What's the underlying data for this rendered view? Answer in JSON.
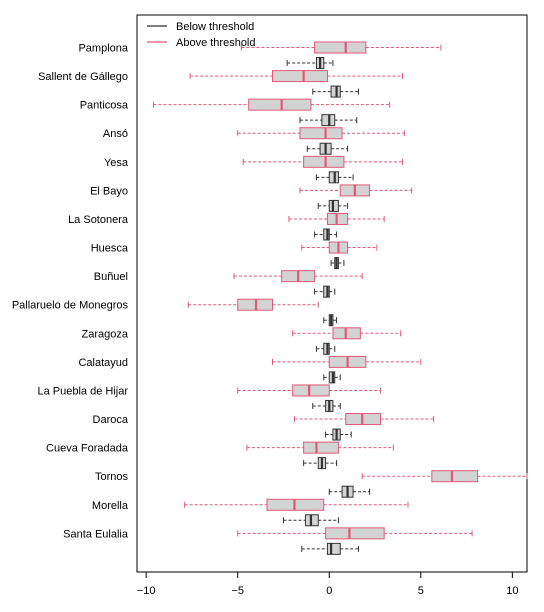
{
  "chart_data": {
    "type": "boxplot",
    "orientation": "horizontal",
    "xlim": [
      -10.5,
      10.8
    ],
    "x_ticks": [
      -10,
      -5,
      0,
      5,
      10
    ],
    "legend": {
      "position": "top-left",
      "entries": [
        {
          "label": "Below threshold",
          "color": "#333333"
        },
        {
          "label": "Above threshold",
          "color": "#e05a78"
        }
      ]
    },
    "categories": [
      {
        "name": "Pamplona",
        "above": {
          "min": -4.8,
          "q1": -0.8,
          "median": 0.9,
          "q3": 2.0,
          "max": 6.1
        },
        "below": {
          "min": -2.3,
          "q1": -0.7,
          "median": -0.5,
          "q3": -0.3,
          "max": 0.2
        }
      },
      {
        "name": "Sallent de Gállego",
        "above": {
          "min": -7.6,
          "q1": -3.1,
          "median": -1.4,
          "q3": -0.1,
          "max": 4.0
        },
        "below": {
          "min": -0.9,
          "q1": 0.1,
          "median": 0.4,
          "q3": 0.6,
          "max": 1.6
        }
      },
      {
        "name": "Panticosa",
        "above": {
          "min": -9.6,
          "q1": -4.4,
          "median": -2.6,
          "q3": -1.0,
          "max": 3.3
        },
        "below": {
          "min": -1.6,
          "q1": -0.4,
          "median": 0.0,
          "q3": 0.3,
          "max": 1.5
        }
      },
      {
        "name": "Ansó",
        "above": {
          "min": -5.0,
          "q1": -1.6,
          "median": -0.2,
          "q3": 0.7,
          "max": 4.1
        },
        "below": {
          "min": -1.2,
          "q1": -0.5,
          "median": -0.2,
          "q3": 0.1,
          "max": 1.0
        }
      },
      {
        "name": "Yesa",
        "above": {
          "min": -4.7,
          "q1": -1.4,
          "median": -0.2,
          "q3": 0.8,
          "max": 4.0
        },
        "below": {
          "min": -0.7,
          "q1": 0.0,
          "median": 0.3,
          "q3": 0.5,
          "max": 1.3
        }
      },
      {
        "name": "El Bayo",
        "above": {
          "min": -1.6,
          "q1": 0.6,
          "median": 1.4,
          "q3": 2.2,
          "max": 4.5
        },
        "below": {
          "min": -0.6,
          "q1": 0.0,
          "median": 0.2,
          "q3": 0.5,
          "max": 1.0
        }
      },
      {
        "name": "La Sotonera",
        "above": {
          "min": -2.2,
          "q1": -0.1,
          "median": 0.4,
          "q3": 1.0,
          "max": 3.0
        },
        "below": {
          "min": -0.8,
          "q1": -0.3,
          "median": -0.1,
          "q3": 0.0,
          "max": 0.4
        }
      },
      {
        "name": "Huesca",
        "above": {
          "min": -1.5,
          "q1": 0.0,
          "median": 0.5,
          "q3": 1.0,
          "max": 2.6
        },
        "below": {
          "min": 0.1,
          "q1": 0.3,
          "median": 0.4,
          "q3": 0.5,
          "max": 0.8
        }
      },
      {
        "name": "Buñuel",
        "above": {
          "min": -5.2,
          "q1": -2.6,
          "median": -1.7,
          "q3": -0.8,
          "max": 1.8
        },
        "below": {
          "min": -0.8,
          "q1": -0.3,
          "median": -0.1,
          "q3": 0.0,
          "max": 0.3
        }
      },
      {
        "name": "Pallaruelo de Monegros",
        "above": {
          "min": -7.7,
          "q1": -5.0,
          "median": -4.0,
          "q3": -3.1,
          "max": -0.6
        },
        "below": {
          "min": -0.3,
          "q1": 0.0,
          "median": 0.1,
          "q3": 0.2,
          "max": 0.4
        }
      },
      {
        "name": "Zaragoza",
        "above": {
          "min": -2.0,
          "q1": 0.2,
          "median": 0.9,
          "q3": 1.7,
          "max": 3.9
        },
        "below": {
          "min": -0.7,
          "q1": -0.3,
          "median": -0.1,
          "q3": 0.0,
          "max": 0.3
        }
      },
      {
        "name": "Calatayud",
        "above": {
          "min": -3.1,
          "q1": 0.0,
          "median": 1.0,
          "q3": 2.0,
          "max": 5.0
        },
        "below": {
          "min": -0.3,
          "q1": 0.0,
          "median": 0.2,
          "q3": 0.3,
          "max": 0.6
        }
      },
      {
        "name": "La Puebla de Hijar",
        "above": {
          "min": -5.0,
          "q1": -2.0,
          "median": -1.1,
          "q3": 0.0,
          "max": 2.8
        },
        "below": {
          "min": -0.9,
          "q1": -0.2,
          "median": 0.0,
          "q3": 0.2,
          "max": 0.6
        }
      },
      {
        "name": "Daroca",
        "above": {
          "min": -1.9,
          "q1": 0.9,
          "median": 1.8,
          "q3": 2.8,
          "max": 5.7
        },
        "below": {
          "min": -0.2,
          "q1": 0.2,
          "median": 0.4,
          "q3": 0.6,
          "max": 1.2
        }
      },
      {
        "name": "Cueva Foradada",
        "above": {
          "min": -4.5,
          "q1": -1.4,
          "median": -0.7,
          "q3": 0.5,
          "max": 3.5
        },
        "below": {
          "min": -1.4,
          "q1": -0.6,
          "median": -0.4,
          "q3": -0.2,
          "max": 0.4
        }
      },
      {
        "name": "Tornos",
        "above": {
          "min": 1.8,
          "q1": 5.6,
          "median": 6.7,
          "q3": 8.1,
          "max": 10.8
        },
        "below": {
          "min": 0.0,
          "q1": 0.7,
          "median": 1.0,
          "q3": 1.3,
          "max": 2.2
        }
      },
      {
        "name": "Morella",
        "above": {
          "min": -7.9,
          "q1": -3.4,
          "median": -1.9,
          "q3": -0.3,
          "max": 4.3
        },
        "below": {
          "min": -2.5,
          "q1": -1.3,
          "median": -1.0,
          "q3": -0.6,
          "max": 0.5
        }
      },
      {
        "name": "Santa Eulalia",
        "above": {
          "min": -5.0,
          "q1": -0.2,
          "median": 1.1,
          "q3": 3.0,
          "max": 7.8
        },
        "below": {
          "min": -1.5,
          "q1": -0.1,
          "median": 0.1,
          "q3": 0.6,
          "max": 1.6
        }
      }
    ]
  }
}
